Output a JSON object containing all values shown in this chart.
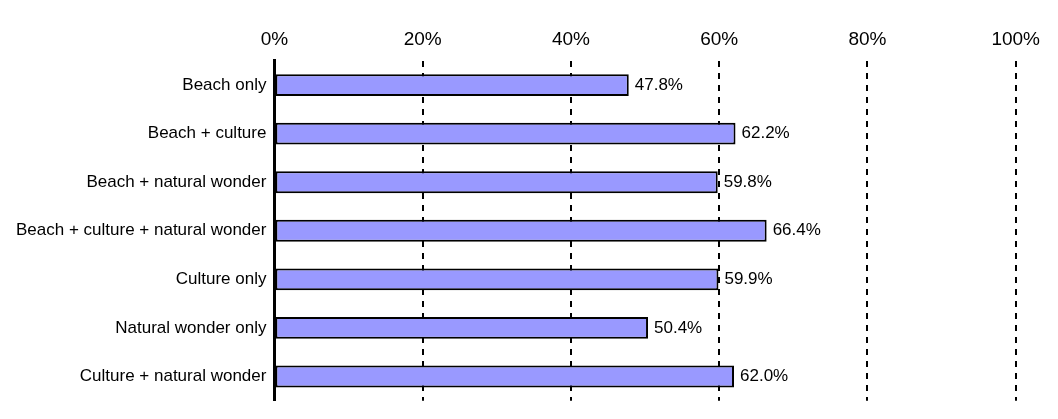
{
  "chart_data": {
    "type": "bar",
    "orientation": "horizontal",
    "categories": [
      "Beach only",
      "Beach + culture",
      "Beach + natural wonder",
      "Beach + culture + natural wonder",
      "Culture only",
      "Natural wonder only",
      "Culture + natural wonder"
    ],
    "values": [
      47.8,
      62.2,
      59.8,
      66.4,
      59.9,
      50.4,
      62.0
    ],
    "value_labels": [
      "47.8%",
      "62.2%",
      "59.8%",
      "66.4%",
      "59.9%",
      "50.4%",
      "62.0%"
    ],
    "color": "#9999ff",
    "xlim": [
      0,
      100
    ],
    "xticks": [
      {
        "value": 0,
        "label": "0%"
      },
      {
        "value": 20,
        "label": "20%"
      },
      {
        "value": 40,
        "label": "40%"
      },
      {
        "value": 60,
        "label": "60%"
      },
      {
        "value": 80,
        "label": "80%"
      },
      {
        "value": 100,
        "label": "100%"
      }
    ],
    "grid": "x",
    "legend": false
  }
}
